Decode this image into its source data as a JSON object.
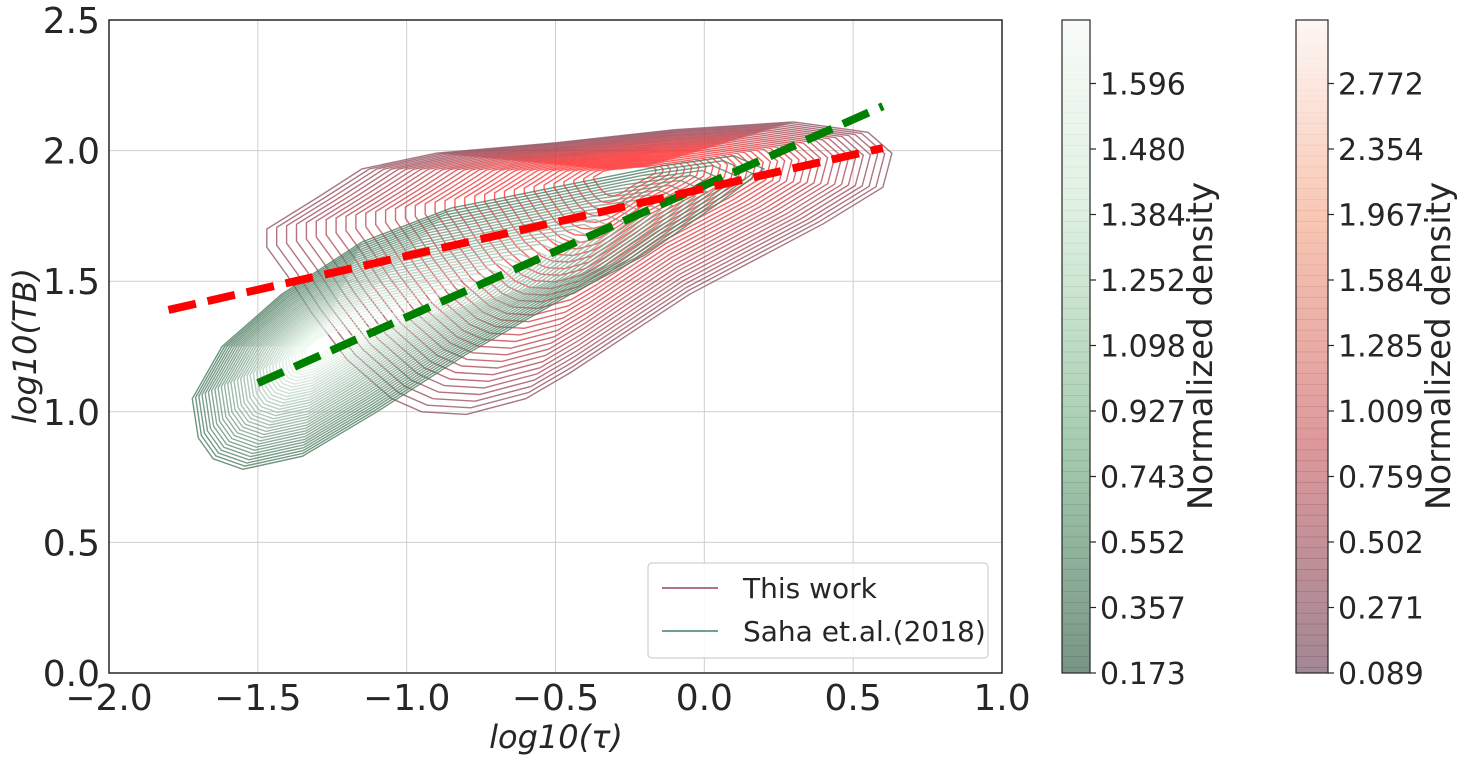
{
  "chart_data": {
    "type": "contour",
    "xlabel": "log10(τ)",
    "ylabel": "log10(TB)",
    "xlim": [
      -2.0,
      1.0
    ],
    "ylim": [
      0.0,
      2.5
    ],
    "x_ticks": [
      "−2.0",
      "−1.5",
      "−1.0",
      "−0.5",
      "0.0",
      "0.5",
      "1.0"
    ],
    "y_ticks": [
      "0.0",
      "0.5",
      "1.0",
      "1.5",
      "2.0",
      "2.5"
    ],
    "grid": true,
    "legend_position": "lower-right",
    "series": [
      {
        "name": "This work",
        "kind": "kde-contour",
        "color": "#a05060",
        "peak": [
          -0.3,
          1.82
        ],
        "fit_line": {
          "x": [
            -1.8,
            0.6
          ],
          "y": [
            1.39,
            2.01
          ],
          "color": "#ff0000",
          "style": "dashed"
        }
      },
      {
        "name": "Saha et.al.(2018)",
        "kind": "kde-contour",
        "color": "#4e8a6a",
        "peak": [
          -1.3,
          1.25
        ],
        "fit_line": {
          "x": [
            -1.5,
            0.6
          ],
          "y": [
            1.11,
            2.17
          ],
          "color": "#008000",
          "style": "dashed"
        }
      }
    ],
    "colorbars": [
      {
        "label": "Normalized density",
        "colormap": "greens",
        "ticks": [
          "0.173",
          "0.357",
          "0.552",
          "0.743",
          "0.927",
          "1.098",
          "1.252",
          "1.384",
          "1.480",
          "1.596"
        ]
      },
      {
        "label": "Normalized density",
        "colormap": "reds",
        "ticks": [
          "0.089",
          "0.271",
          "0.502",
          "0.759",
          "1.009",
          "1.285",
          "1.584",
          "1.967",
          "2.354",
          "2.772"
        ]
      }
    ]
  }
}
